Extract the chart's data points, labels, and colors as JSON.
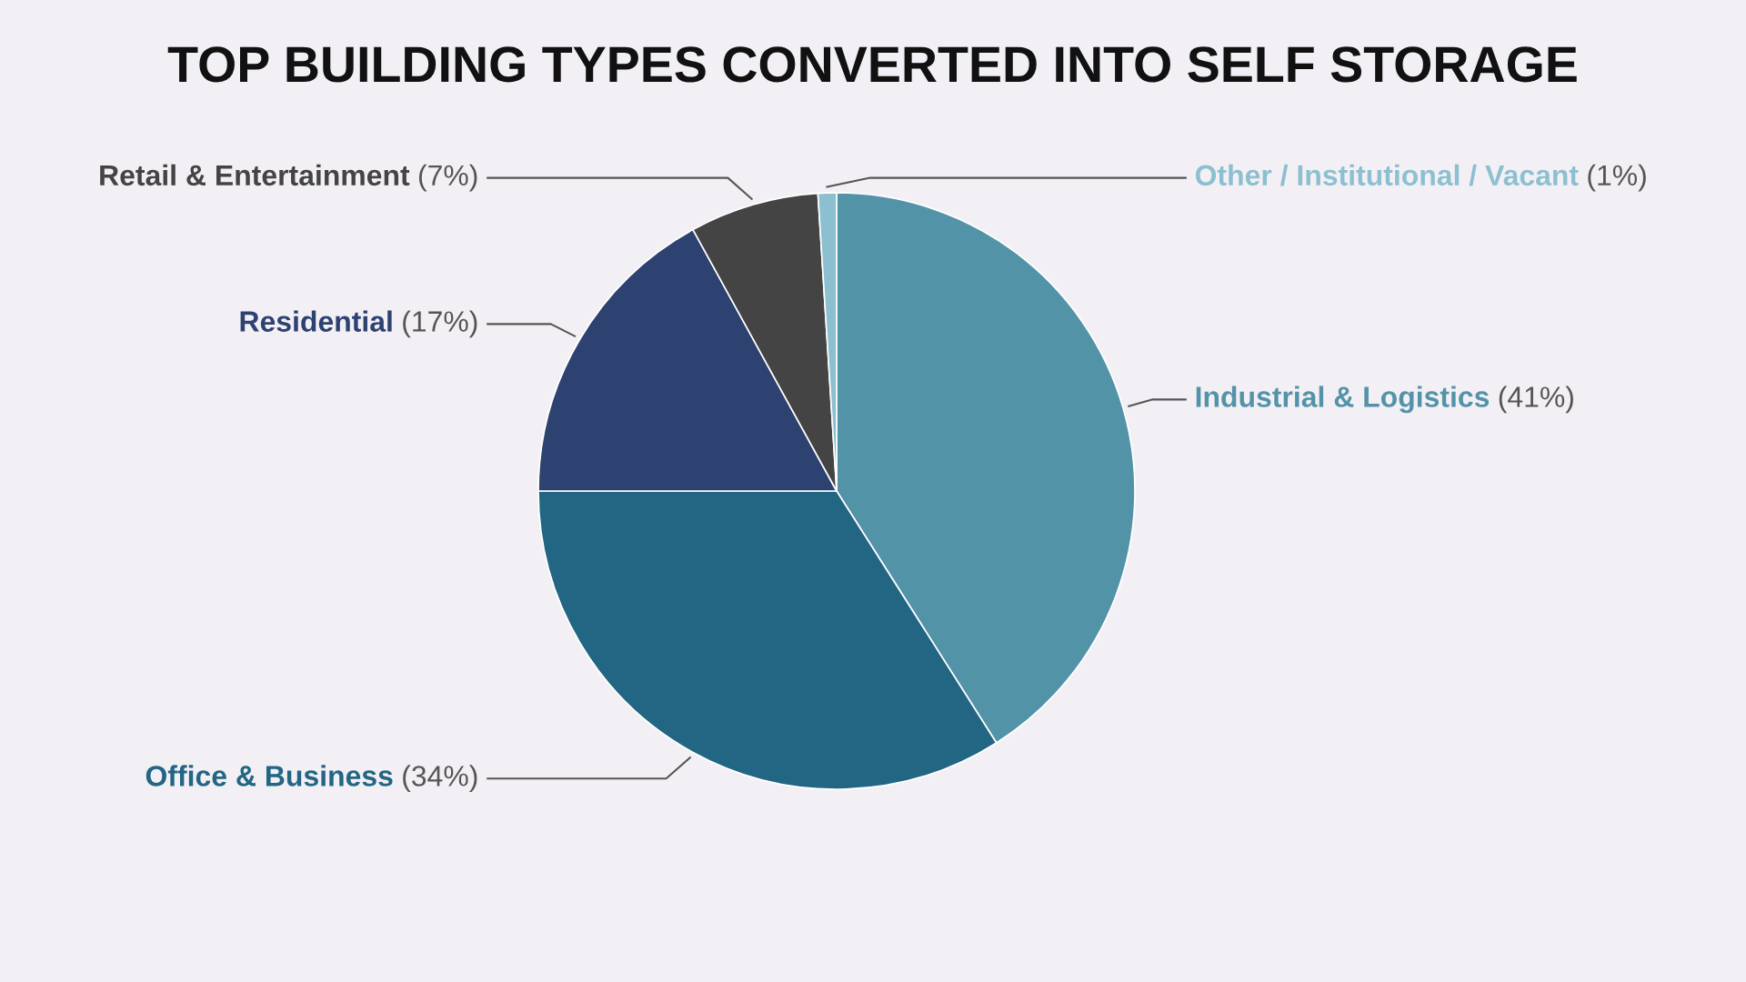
{
  "chart_data": {
    "type": "pie",
    "title": "TOP BUILDING TYPES CONVERTED INTO SELF STORAGE",
    "categories": [
      "Industrial & Logistics",
      "Office & Business",
      "Residential",
      "Retail & Entertainment",
      "Other / Institutional / Vacant"
    ],
    "values": [
      41,
      34,
      17,
      7,
      1
    ],
    "value_labels": [
      "(41%)",
      "(34%)",
      "(17%)",
      "(7%)",
      "(1%)"
    ],
    "colors": [
      "#5393a8",
      "#226683",
      "#2d4270",
      "#444444",
      "#8cc0d0"
    ]
  }
}
